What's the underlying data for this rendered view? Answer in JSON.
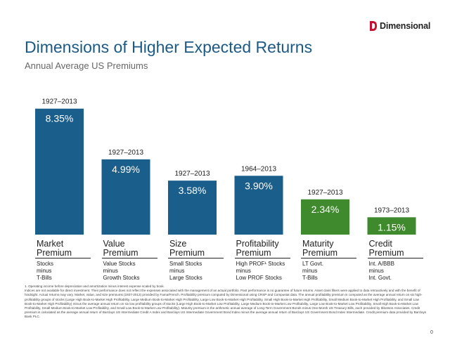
{
  "brand": {
    "name": "Dimensional",
    "color": "#c8102e"
  },
  "chart_data": {
    "type": "bar",
    "title": "Dimensions of Higher Expected Returns",
    "subtitle": "Annual Average US Premiums",
    "ylim": [
      0,
      9.5
    ],
    "grid": false,
    "categories": [
      {
        "name": "Market\nPremium",
        "definition": "Stocks\nminus\nT-Bills",
        "period": "1927–2013",
        "value": 8.35,
        "value_label": "8.35%",
        "color": "#1a5e8c"
      },
      {
        "name": "Value\nPremium",
        "definition": "Value Stocks\nminus\nGrowth Stocks",
        "period": "1927–2013",
        "value": 4.99,
        "value_label": "4.99%",
        "color": "#1a5e8c"
      },
      {
        "name": "Size\nPremium",
        "definition": "Small Stocks\nminus\nLarge Stocks",
        "period": "1927–2013",
        "value": 3.58,
        "value_label": "3.58%",
        "color": "#1a5e8c"
      },
      {
        "name": "Profitability\nPremium",
        "definition": "High PROF¹ Stocks\nminus\nLow PROF Stocks",
        "period": "1964–2013",
        "value": 3.9,
        "value_label": "3.90%",
        "color": "#1a5e8c"
      },
      {
        "name": "Maturity\nPremium",
        "definition": "LT Govt.\nminus\nT-Bills",
        "period": "1927–2013",
        "value": 2.34,
        "value_label": "2.34%",
        "color": "#3f8a2c"
      },
      {
        "name": "Credit\nPremium",
        "definition": "Int. A/BBB\nminus\nInt. Govt.",
        "period": "1973–2013",
        "value": 1.15,
        "value_label": "1.15%",
        "color": "#3f8a2c"
      }
    ]
  },
  "footnote": "1. Operating income before depreciation and amortization minus interest expense scaled by book.\nIndices are not available for direct investment. Their performance does not reflect the expenses associated with the management of an actual portfolio. Past performance is no guarantee of future returns. Asset class filters were applied to data retroactively and with the benefit of hindsight. Actual returns may vary. Market, value, and size premiums (1927-2013) provided by Fama/French. Profitability premium computed by Dimensional using CRSP and Compustat data. The annual profitability premium is computed as the average annual return on six high-profitability groups of stocks (Large High Book-to-Market High Profitability, Large Medium Book-to-Market High Profitability, Large Low Book-to-Market High Profitability, Small High Book-to-Market High Profitability, Small Medium Book-to-Market High Profitability, and Small Low Book-to-Market High Profitability) minus the average annual return on six low profitability groups of stocks (Large High Book-to-Market Low Profitability, Large Medium Book-to-Market Low Profitability, Large Low Book-to-Market Low Profitability, Small High Book-to-Market Low Profitability, Small Medium Book-to-Market Low Profitability, and Small Low Book-to-Market Low Profitability). Maturity premium is the arithmetic annual average of Long-Term Government Bonds minus One-Month US Treasury Bills, each provided by Ibbotson Associates. Credit premium is calculated as the average annual return of Barclays US Intermediate Credit A Index and Barclays US Intermediate Government Bond Index minus the average annual return of Barclays US Government Bond Index Intermediate. Credit premium data provided by Barclays Bank PLC.",
  "page_number": "0"
}
